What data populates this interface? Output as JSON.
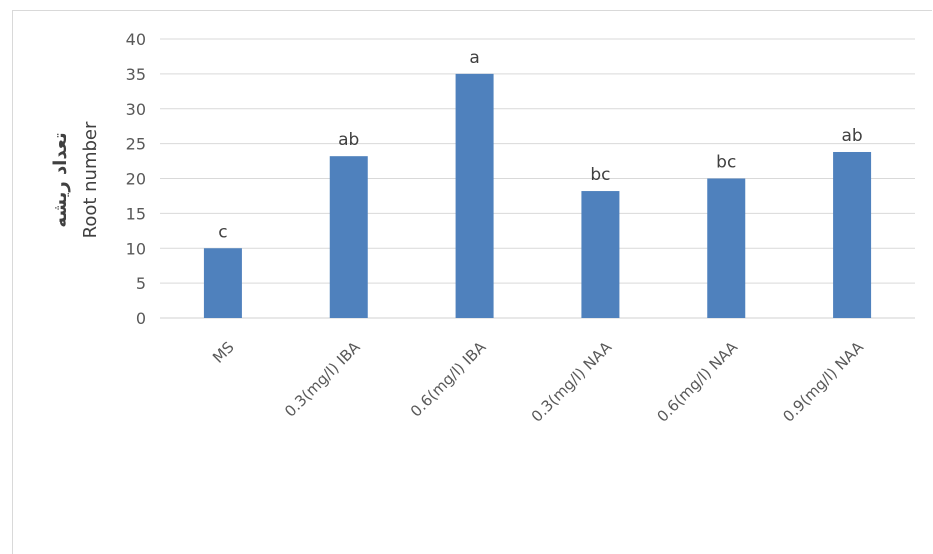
{
  "chart_data": {
    "type": "bar",
    "title": "",
    "xlabel": "",
    "ylabel_fa": "تعداد ریشه",
    "ylabel": "Root number",
    "categories": [
      "MS",
      "0.3(mg/l) IBA",
      "0.6(mg/l) IBA",
      "0.3(mg/l) NAA",
      "0.6(mg/l) NAA",
      "0.9(mg/l) NAA"
    ],
    "values": [
      10,
      23.2,
      35,
      18.2,
      20,
      23.8
    ],
    "data_labels": [
      "c",
      "ab",
      "a",
      "bc",
      "bc",
      "ab"
    ],
    "ylim": [
      0,
      40
    ],
    "yticks": [
      0,
      5,
      10,
      15,
      20,
      25,
      30,
      35,
      40
    ],
    "grid": true,
    "legend": "none",
    "bar_color": "#4f81bd"
  }
}
